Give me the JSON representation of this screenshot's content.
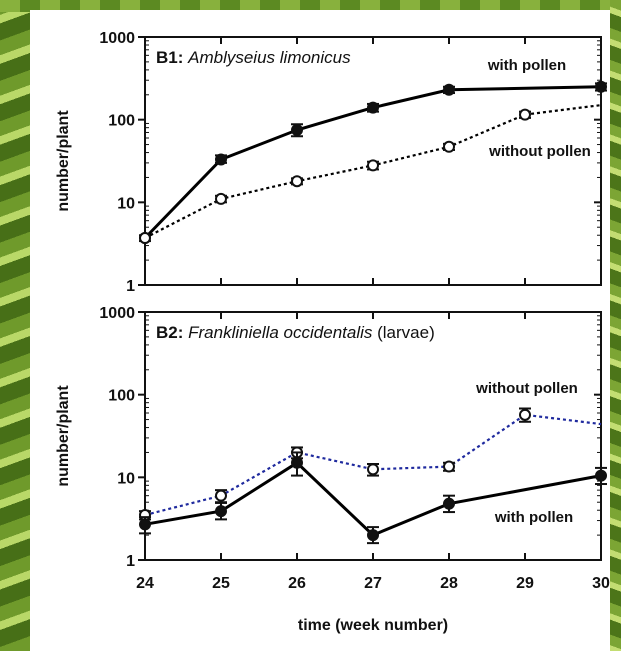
{
  "chart_data": [
    {
      "type": "line",
      "panel_id": "B1",
      "title_bold": "B1",
      "title_species": "Amblyseius limonicus",
      "title_suffix": "",
      "ylabel": "number/plant",
      "xlabel": "",
      "y_scale": "log",
      "ylim": [
        1,
        1000
      ],
      "yticks": [
        1,
        10,
        100,
        1000
      ],
      "xlim": [
        24,
        30
      ],
      "x": [
        24,
        25,
        26,
        27,
        28,
        29,
        30
      ],
      "series": [
        {
          "name": "with pollen",
          "style": "solid",
          "marker": "filled",
          "color": "#000000",
          "points": [
            {
              "x": 24,
              "y": 3.7,
              "lo": 3.4,
              "hi": 4.0
            },
            {
              "x": 25,
              "y": 33,
              "lo": 30,
              "hi": 37
            },
            {
              "x": 26,
              "y": 75,
              "lo": 63,
              "hi": 88
            },
            {
              "x": 27,
              "y": 140,
              "lo": 125,
              "hi": 155
            },
            {
              "x": 28,
              "y": 230,
              "lo": 210,
              "hi": 250
            },
            {
              "x": 30,
              "y": 250,
              "lo": 225,
              "hi": 275
            }
          ]
        },
        {
          "name": "without pollen",
          "style": "dotted",
          "marker": "open",
          "color": "#000000",
          "points": [
            {
              "x": 24,
              "y": 3.7
            },
            {
              "x": 25,
              "y": 11,
              "lo": 10,
              "hi": 12
            },
            {
              "x": 26,
              "y": 18,
              "lo": 16.5,
              "hi": 19.5
            },
            {
              "x": 27,
              "y": 28,
              "lo": 25,
              "hi": 31
            },
            {
              "x": 28,
              "y": 47,
              "lo": 43,
              "hi": 51
            },
            {
              "x": 29,
              "y": 115,
              "lo": 105,
              "hi": 125
            },
            {
              "x": 30,
              "y": 150
            }
          ]
        }
      ]
    },
    {
      "type": "line",
      "panel_id": "B2",
      "title_bold": "B2",
      "title_species": "Frankliniella occidentalis",
      "title_suffix": "(larvae)",
      "ylabel": "number/plant",
      "xlabel": "time (week number)",
      "y_scale": "log",
      "ylim": [
        1,
        1000
      ],
      "yticks": [
        1,
        10,
        100,
        1000
      ],
      "xlim": [
        24,
        30
      ],
      "x": [
        24,
        25,
        26,
        27,
        28,
        29,
        30
      ],
      "series": [
        {
          "name": "without pollen",
          "style": "dotted",
          "marker": "open",
          "color": "#1f2a9e",
          "points": [
            {
              "x": 24,
              "y": 3.5,
              "lo": 3.1,
              "hi": 3.9
            },
            {
              "x": 25,
              "y": 6.0,
              "lo": 5.0,
              "hi": 7.0
            },
            {
              "x": 26,
              "y": 20,
              "lo": 17,
              "hi": 23
            },
            {
              "x": 27,
              "y": 12.5,
              "lo": 10.5,
              "hi": 14.5
            },
            {
              "x": 28,
              "y": 13.5,
              "lo": 12,
              "hi": 15
            },
            {
              "x": 29,
              "y": 57,
              "lo": 47,
              "hi": 68
            },
            {
              "x": 30,
              "y": 44
            }
          ]
        },
        {
          "name": "with pollen",
          "style": "solid",
          "marker": "filled",
          "color": "#000000",
          "points": [
            {
              "x": 24,
              "y": 2.7,
              "lo": 2.1,
              "hi": 3.3
            },
            {
              "x": 25,
              "y": 3.9,
              "lo": 3.1,
              "hi": 4.9
            },
            {
              "x": 26,
              "y": 15,
              "lo": 10.5,
              "hi": 20
            },
            {
              "x": 27,
              "y": 2.0,
              "lo": 1.6,
              "hi": 2.5
            },
            {
              "x": 28,
              "y": 4.8,
              "lo": 3.8,
              "hi": 6.0
            },
            {
              "x": 30,
              "y": 10.5,
              "lo": 8.3,
              "hi": 13
            }
          ]
        }
      ]
    }
  ],
  "x_tick_labels": [
    "24",
    "25",
    "26",
    "27",
    "28",
    "29",
    "30"
  ],
  "y_tick_labels": [
    "1",
    "10",
    "100",
    "1000"
  ]
}
